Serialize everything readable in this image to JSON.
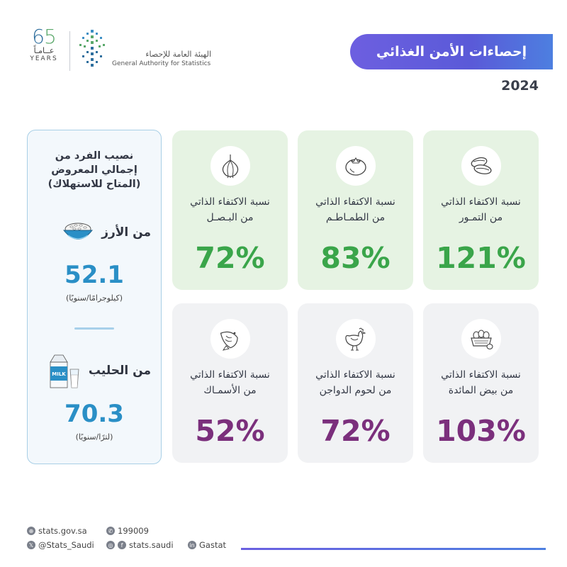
{
  "header": {
    "logo65": {
      "number_six": "6",
      "number_five": "5",
      "ar": "عــامـاً",
      "en": "YEARS"
    },
    "gastat": {
      "ar": "الهيئة العامة للإحصاء",
      "en": "General Authority for Statistics"
    },
    "title": "إحصاءات الأمن الغذائي",
    "year": "2024"
  },
  "side_card": {
    "title_lines": [
      "نصيب الفرد من",
      "إجمالي المعروض",
      "(المتاح للاستهلاك)"
    ],
    "rice": {
      "label": "من الأرز",
      "value": "52.1",
      "unit": "(كيلوجرامًا/سنويًا)",
      "icon": "rice-bowl-icon"
    },
    "milk": {
      "label": "من الحليب",
      "value": "70.3",
      "unit": "(لترًا/سنويًا)",
      "icon": "milk-carton-icon",
      "carton_text": "MILK"
    }
  },
  "cards": [
    {
      "line1": "نسبة الاكتفاء الذاتي",
      "line2": "من التمـور",
      "value": "121%",
      "icon": "dates-icon",
      "color": "#3aa54a"
    },
    {
      "line1": "نسبة الاكتفاء الذاتي",
      "line2": "من الطمـاطـم",
      "value": "83%",
      "icon": "tomato-icon",
      "color": "#3aa54a"
    },
    {
      "line1": "نسبة الاكتفاء الذاتي",
      "line2": "من البـصـل",
      "value": "72%",
      "icon": "onion-icon",
      "color": "#3aa54a"
    },
    {
      "line1": "نسبة الاكتفاء الذاتي",
      "line2": "من بيض المائدة",
      "value": "103%",
      "icon": "eggs-basket-icon",
      "color": "#7b2f7c"
    },
    {
      "line1": "نسبة الاكتفاء الذاتي",
      "line2": "من لحوم الدواجن",
      "value": "72%",
      "icon": "chicken-icon",
      "color": "#7b2f7c"
    },
    {
      "line1": "نسبة الاكتفاء الذاتي",
      "line2": "من الأسمـاك",
      "value": "52%",
      "icon": "fish-icon",
      "color": "#7b2f7c"
    }
  ],
  "footer": {
    "website": "stats.gov.sa",
    "phone": "199009",
    "twitter": "@Stats_Saudi",
    "social": "stats.saudi",
    "linkedin": "Gastat"
  }
}
